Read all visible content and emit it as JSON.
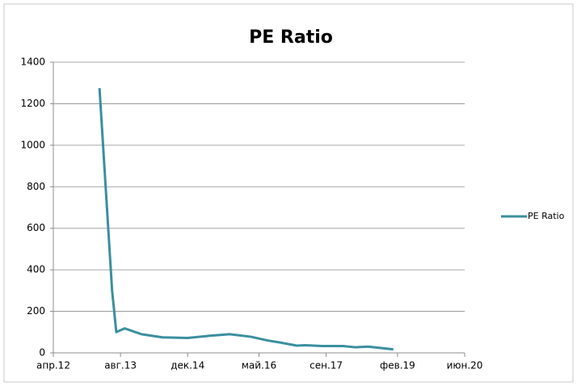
{
  "chart_data": {
    "type": "line",
    "title": "PE Ratio",
    "x": [
      "2013-03",
      "2013-06",
      "2013-07",
      "2013-09",
      "2014-01",
      "2014-06",
      "2014-12",
      "2015-05",
      "2015-10",
      "2016-03",
      "2016-07",
      "2016-10",
      "2017-02",
      "2017-04",
      "2017-08",
      "2018-01",
      "2018-04",
      "2018-07",
      "2019-01"
    ],
    "series": [
      {
        "name": "PE Ratio",
        "color": "#3a8fa0",
        "values": [
          1275,
          300,
          100,
          118,
          90,
          75,
          72,
          82,
          90,
          78,
          60,
          50,
          35,
          37,
          33,
          33,
          27,
          30,
          17
        ]
      }
    ],
    "xticks": [
      {
        "value": "2012-04",
        "label": "апр.12"
      },
      {
        "value": "2013-08",
        "label": "авг.13"
      },
      {
        "value": "2014-12",
        "label": "дек.14"
      },
      {
        "value": "2016-05",
        "label": "май.16"
      },
      {
        "value": "2017-09",
        "label": "сен.17"
      },
      {
        "value": "2019-02",
        "label": "фев.19"
      },
      {
        "value": "2020-06",
        "label": "июн.20"
      }
    ],
    "ylim": [
      0,
      1400
    ],
    "yticks": [
      0,
      200,
      400,
      600,
      800,
      1000,
      1200,
      1400
    ],
    "grid": true,
    "legend": "right"
  }
}
